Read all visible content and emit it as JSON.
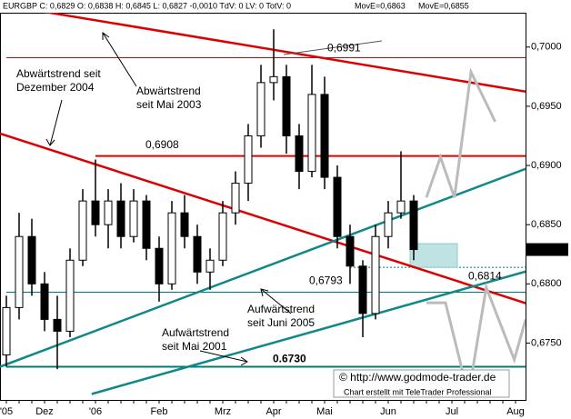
{
  "chart_data": {
    "type": "candlestick",
    "header": "EURGBP C: 0,6829 O: 0,6838 H: 0,6845 L: 0,6827 -0,0010 TdV: 0 LV: 0 TotV: 0",
    "header_ma": [
      {
        "text": "MovE=0,6863",
        "color": "#0000cc"
      },
      {
        "text": "MovE=0,6855",
        "color": "#cc0000"
      }
    ],
    "last_price": "0,6829",
    "categories": [
      "'05",
      null,
      null,
      "Dez",
      null,
      null,
      null,
      "'06",
      null,
      null,
      null,
      null,
      "Feb",
      null,
      null,
      null,
      null,
      "Mrz",
      null,
      null,
      null,
      "Apr",
      null,
      null,
      null,
      "Mai",
      null,
      null,
      null,
      null,
      "Jun",
      null,
      null,
      null,
      null,
      "Jul",
      null,
      null,
      null,
      null,
      "Aug"
    ],
    "open": [
      0.674,
      0.678,
      0.684,
      0.68,
      0.677,
      0.676,
      0.682,
      0.687,
      0.685,
      0.687,
      0.684,
      0.687,
      0.683,
      0.68,
      0.686,
      0.684,
      0.681,
      0.682,
      0.686,
      0.6885,
      0.6925,
      0.697,
      0.6975,
      0.6925,
      0.6895,
      0.696,
      0.689,
      0.684,
      0.6815,
      0.6775,
      0.684,
      0.686,
      0.687,
      null,
      null,
      null,
      null,
      null,
      null,
      null,
      null
    ],
    "high": [
      0.679,
      0.686,
      0.6855,
      0.681,
      0.679,
      0.683,
      0.688,
      0.6905,
      0.688,
      0.6885,
      0.688,
      0.6875,
      0.684,
      0.687,
      0.6875,
      0.685,
      0.683,
      0.687,
      0.6895,
      0.6935,
      0.6985,
      0.7015,
      0.6985,
      0.6935,
      0.6985,
      0.6975,
      0.69,
      0.685,
      0.682,
      0.685,
      0.687,
      0.6912,
      0.6875,
      null,
      null,
      null,
      null,
      null,
      null,
      null,
      null
    ],
    "low": [
      0.673,
      0.677,
      0.679,
      0.676,
      0.6728,
      0.6755,
      0.6815,
      0.684,
      0.683,
      0.683,
      0.6835,
      0.682,
      0.6785,
      0.6795,
      0.683,
      0.68,
      0.6795,
      0.6815,
      0.685,
      0.687,
      0.6915,
      0.6955,
      0.691,
      0.688,
      0.689,
      0.688,
      0.683,
      0.68,
      0.6755,
      0.677,
      0.683,
      0.6855,
      0.682,
      null,
      null,
      null,
      null,
      null,
      null,
      null,
      null
    ],
    "close": [
      0.678,
      0.684,
      0.68,
      0.677,
      0.676,
      0.682,
      0.687,
      0.685,
      0.687,
      0.684,
      0.687,
      0.683,
      0.68,
      0.686,
      0.684,
      0.681,
      0.682,
      0.686,
      0.6885,
      0.6925,
      0.697,
      0.6975,
      0.6925,
      0.6895,
      0.696,
      0.689,
      0.684,
      0.6815,
      0.6775,
      0.684,
      0.686,
      0.687,
      0.6829,
      null,
      null,
      null,
      null,
      null,
      null,
      null,
      null
    ],
    "ylim": [
      0.6702,
      0.7029
    ],
    "yticks": [
      {
        "value": 0.675,
        "label": "0,6750"
      },
      {
        "value": 0.68,
        "label": "0,6800"
      },
      {
        "value": 0.685,
        "label": "0,6850"
      },
      {
        "value": 0.69,
        "label": "0,6900"
      },
      {
        "value": 0.695,
        "label": "0,6950"
      },
      {
        "value": 0.7,
        "label": "0,7000"
      }
    ],
    "levels": [
      {
        "value": 0.6991,
        "label": "0,6991",
        "color": "#dd0000",
        "from": 0,
        "width": 1
      },
      {
        "value": 0.6908,
        "label": "0,6908",
        "color": "#dd0000",
        "from": 7,
        "width": 2
      },
      {
        "value": 0.6814,
        "label": "0,6814",
        "color": "#007b7b",
        "from": 27,
        "width": 1
      },
      {
        "value": 0.6793,
        "label": "0,6793",
        "color": "#007b7b",
        "from": 0,
        "width": 1
      },
      {
        "value": 0.673,
        "label": "0.6730",
        "color": "#007b7b",
        "from": 0,
        "width": 2
      }
    ],
    "trendlines": [
      {
        "color": "#dd0000",
        "start": [
          -0.5,
          0.7036
        ],
        "end": [
          41,
          0.6962
        ]
      },
      {
        "color": "#dd0000",
        "start": [
          -0.5,
          0.6927
        ],
        "end": [
          41,
          0.6783
        ]
      },
      {
        "color": "#118888",
        "start": [
          -0.5,
          0.673
        ],
        "end": [
          41,
          0.6898
        ]
      },
      {
        "color": "#118888",
        "start": [
          6.7,
          0.6707
        ],
        "end": [
          41,
          0.6811
        ]
      }
    ],
    "projections": [
      {
        "color": "#bbbbbb",
        "points": [
          [
            33,
            0.6873
          ],
          [
            34.1,
            0.6907
          ],
          [
            35.2,
            0.6873
          ],
          [
            36.5,
            0.6979
          ],
          [
            38.4,
            0.6937
          ]
        ]
      },
      {
        "color": "#bbbbbb",
        "points": [
          [
            33,
            0.6784
          ],
          [
            34.5,
            0.6784
          ],
          [
            36.3,
            0.6706
          ],
          [
            37.7,
            0.6797
          ],
          [
            39.9,
            0.6736
          ],
          [
            40.8,
            0.677
          ]
        ]
      }
    ],
    "annotations": [
      {
        "lines": [
          "Abwärtstrend seit",
          "Dezember 2004"
        ]
      },
      {
        "lines": [
          "Abwärtstrend",
          "seit Mai 2003"
        ]
      },
      {
        "lines": [
          "Aufwärtstrend",
          "seit Juni 2005"
        ]
      },
      {
        "lines": [
          "Aufwärtstrend",
          "seit Mai 2001"
        ]
      }
    ],
    "credit": "© http://www.godmode-trader.de",
    "credit2": "Chart erstellt mit TeleTrader Professional"
  }
}
